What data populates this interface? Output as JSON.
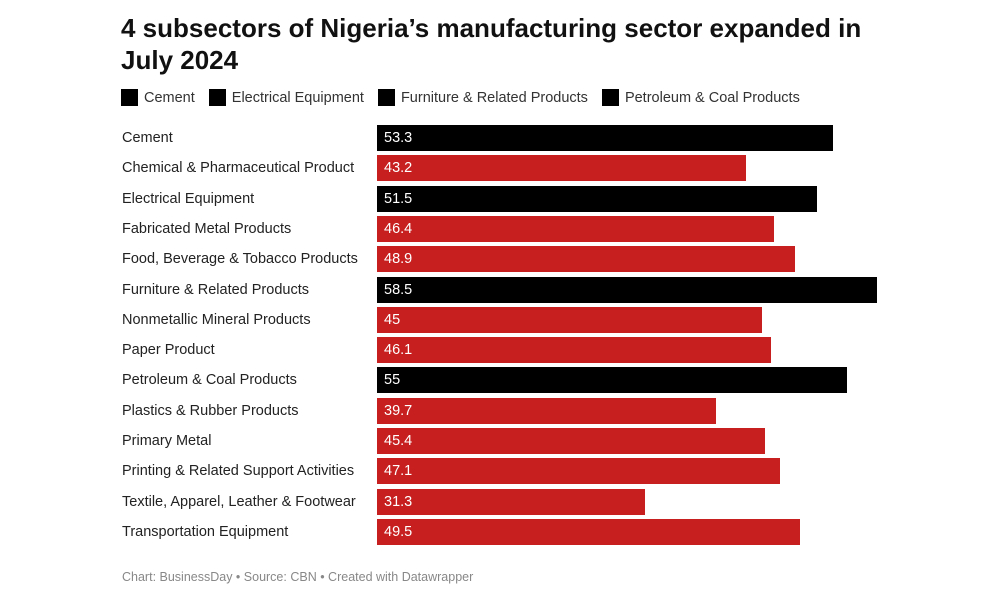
{
  "chart_data": {
    "type": "bar",
    "orientation": "horizontal",
    "title": "4 subsectors of Nigeria’s manufacturing sector expanded in July 2024",
    "legend": [
      {
        "label": "Cement",
        "color": "#000000"
      },
      {
        "label": "Electrical Equipment",
        "color": "#000000"
      },
      {
        "label": "Furniture & Related Products",
        "color": "#000000"
      },
      {
        "label": "Petroleum & Coal Products",
        "color": "#000000"
      }
    ],
    "legend_position": "top-left",
    "categories": [
      "Cement",
      "Chemical & Pharmaceutical Product",
      "Electrical Equipment",
      "Fabricated Metal Products",
      "Food, Beverage & Tobacco Products",
      "Furniture & Related Products",
      "Nonmetallic Mineral Products",
      "Paper Product",
      "Petroleum & Coal Products",
      "Plastics & Rubber Products",
      "Primary Metal",
      "Printing & Related Support Activities",
      "Textile, Apparel, Leather & Footwear",
      "Transportation Equipment"
    ],
    "values": [
      53.3,
      43.2,
      51.5,
      46.4,
      48.9,
      58.5,
      45,
      46.1,
      55,
      39.7,
      45.4,
      47.1,
      31.3,
      49.5
    ],
    "highlighted": [
      true,
      false,
      true,
      false,
      false,
      true,
      false,
      false,
      true,
      false,
      false,
      false,
      false,
      false
    ],
    "colors": {
      "highlight": "#000000",
      "default": "#c71f1f"
    },
    "xlim": [
      0,
      58.5
    ],
    "grid": false
  },
  "footer": "Chart: BusinessDay • Source: CBN • Created with Datawrapper"
}
